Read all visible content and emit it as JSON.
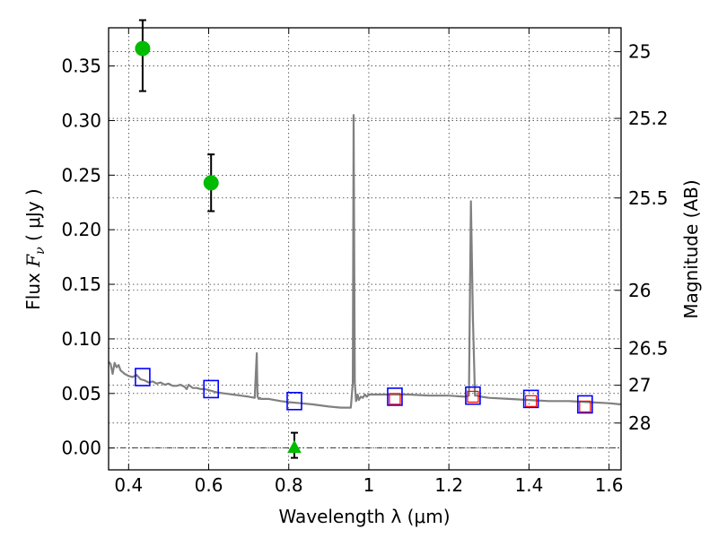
{
  "chart_data": {
    "type": "scatter",
    "xlabel": "Wavelength  λ (μm)",
    "ylabel_main": "Flux  ",
    "ylabel_symbol": "F",
    "ylabel_subscript": "ν",
    "ylabel_units": "  ( μJy )",
    "y2label": "Magnitude (AB)",
    "xlim": [
      0.35,
      1.63
    ],
    "ylim": [
      -0.02,
      0.385
    ],
    "grid": true,
    "x_ticks": [
      0.4,
      0.6,
      0.8,
      1.0,
      1.2,
      1.4,
      1.6
    ],
    "x_tick_labels": [
      "0.4",
      "0.6",
      "0.8",
      "1",
      "1.2",
      "1.4",
      "1.6"
    ],
    "y_ticks": [
      0.0,
      0.05,
      0.1,
      0.15,
      0.2,
      0.25,
      0.3,
      0.35
    ],
    "y_tick_labels": [
      "0.00",
      "0.05",
      "0.10",
      "0.15",
      "0.20",
      "0.25",
      "0.30",
      "0.35"
    ],
    "y2_ticks": [
      {
        "label": "25",
        "flux": 0.3631
      },
      {
        "label": "25.2",
        "flux": 0.302
      },
      {
        "label": "25.5",
        "flux": 0.2291
      },
      {
        "label": "26",
        "flux": 0.1445
      },
      {
        "label": "26.5",
        "flux": 0.0912
      },
      {
        "label": "27",
        "flux": 0.0575
      },
      {
        "label": "28",
        "flux": 0.0229
      }
    ],
    "model_spectrum": {
      "color": "#808080",
      "x": [
        0.35,
        0.355,
        0.36,
        0.365,
        0.37,
        0.375,
        0.38,
        0.39,
        0.4,
        0.41,
        0.42,
        0.43,
        0.44,
        0.45,
        0.46,
        0.47,
        0.48,
        0.49,
        0.5,
        0.51,
        0.52,
        0.53,
        0.54,
        0.545,
        0.55,
        0.56,
        0.57,
        0.58,
        0.59,
        0.6,
        0.62,
        0.64,
        0.66,
        0.68,
        0.7,
        0.715,
        0.72,
        0.722,
        0.725,
        0.728,
        0.73,
        0.75,
        0.78,
        0.8,
        0.83,
        0.86,
        0.9,
        0.93,
        0.955,
        0.96,
        0.962,
        0.965,
        0.968,
        0.972,
        0.975,
        0.98,
        0.985,
        0.99,
        0.995,
        1.0,
        1.05,
        1.1,
        1.15,
        1.2,
        1.24,
        1.25,
        1.255,
        1.26,
        1.265,
        1.27,
        1.28,
        1.3,
        1.35,
        1.4,
        1.45,
        1.5,
        1.55,
        1.6,
        1.63
      ],
      "y": [
        0.079,
        0.077,
        0.068,
        0.078,
        0.074,
        0.076,
        0.071,
        0.068,
        0.066,
        0.065,
        0.067,
        0.063,
        0.062,
        0.06,
        0.061,
        0.059,
        0.06,
        0.058,
        0.059,
        0.057,
        0.057,
        0.058,
        0.056,
        0.054,
        0.058,
        0.055,
        0.055,
        0.054,
        0.054,
        0.053,
        0.051,
        0.05,
        0.049,
        0.048,
        0.047,
        0.046,
        0.087,
        0.047,
        0.045,
        0.046,
        0.045,
        0.045,
        0.043,
        0.042,
        0.041,
        0.04,
        0.038,
        0.037,
        0.037,
        0.06,
        0.305,
        0.06,
        0.043,
        0.049,
        0.044,
        0.047,
        0.046,
        0.049,
        0.047,
        0.049,
        0.049,
        0.049,
        0.048,
        0.048,
        0.047,
        0.048,
        0.226,
        0.12,
        0.048,
        0.048,
        0.047,
        0.046,
        0.045,
        0.044,
        0.043,
        0.043,
        0.042,
        0.041,
        0.04
      ]
    },
    "model_photometry": {
      "marker": "open-square",
      "color": "#0000ff",
      "x": [
        0.435,
        0.606,
        0.814,
        1.065,
        1.26,
        1.405,
        1.54
      ],
      "y": [
        0.065,
        0.054,
        0.043,
        0.047,
        0.048,
        0.045,
        0.04
      ]
    },
    "obs_upper_limits": {
      "marker": "open-square",
      "color": "#ff0000",
      "x": [
        1.065,
        1.26,
        1.405,
        1.54
      ],
      "y": [
        0.045,
        0.047,
        0.043,
        0.038
      ]
    },
    "obs_detections": {
      "marker": "circle",
      "color": "#00bb00",
      "x": [
        0.435,
        0.606
      ],
      "y": [
        0.366,
        0.243
      ],
      "yerr_low": [
        0.039,
        0.026
      ],
      "yerr_high": [
        0.026,
        0.026
      ]
    },
    "obs_nondetection": {
      "marker": "triangle",
      "color": "#00bb00",
      "x": [
        0.814
      ],
      "y": [
        0.0
      ],
      "yerr_low": [
        0.009
      ],
      "yerr_high": [
        0.014
      ]
    }
  }
}
